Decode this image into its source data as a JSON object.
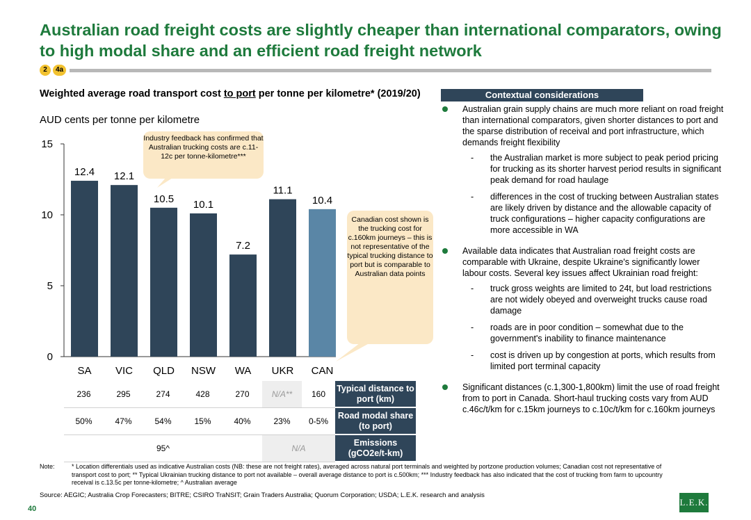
{
  "title": "Australian road freight costs are slightly cheaper than international comparators, owing to high modal share and an efficient road freight network",
  "badges": [
    "2",
    "4a"
  ],
  "chart_data": {
    "type": "bar",
    "title_pre": "Weighted average road transport cost ",
    "title_underlined": "to port",
    "title_post": " per tonne per kilometre* (2019/20)",
    "ylabel": "AUD cents per tonne per kilometre",
    "categories": [
      "SA",
      "VIC",
      "QLD",
      "NSW",
      "WA",
      "UKR",
      "CAN"
    ],
    "values": [
      12.4,
      12.1,
      10.5,
      10.1,
      7.2,
      11.1,
      10.4
    ],
    "value_labels": [
      "12.4",
      "12.1",
      "10.5",
      "10.1",
      "7.2",
      "11.1",
      "10.4"
    ],
    "ylim": [
      0,
      15
    ],
    "yticks": [
      "0",
      "5",
      "10",
      "15"
    ],
    "ytick_values": [
      0,
      5,
      10,
      15
    ],
    "bar_colors": [
      "#2f4559",
      "#2f4559",
      "#2f4559",
      "#2f4559",
      "#2f4559",
      "#2f4559",
      "#5a86a6"
    ],
    "callout_1": "Industry feedback has confirmed that Australian trucking costs are c.11-12c per tonne-kilometre***",
    "callout_2": "Canadian cost shown is the trucking cost for c.160km journeys – this is not representative of the typical trucking distance to port but is comparable to Australian data points"
  },
  "metrics": {
    "distance": {
      "label": "Typical distance to port (km)",
      "values": [
        "236",
        "295",
        "274",
        "428",
        "270",
        "N/A**",
        "160"
      ]
    },
    "modal": {
      "label": "Road modal share (to port)",
      "values": [
        "50%",
        "47%",
        "54%",
        "15%",
        "40%",
        "23%",
        "0-5%"
      ]
    },
    "emissions": {
      "label": "Emissions (gCO2e/t-km)",
      "australia": "95^",
      "other": "N/A"
    }
  },
  "context": {
    "heading": "Contextual considerations",
    "b1": "Australian grain supply chains are much more reliant on road freight than international comparators, given shorter distances to port and the sparse distribution of receival and port infrastructure, which demands freight flexibility",
    "b1s1": "the Australian market is more subject to peak period pricing for trucking as its shorter harvest period results in significant peak demand for road haulage",
    "b1s2": "differences in the cost of trucking between Australian states are likely driven by distance and the allowable capacity of truck configurations – higher capacity configurations are more accessible in WA",
    "b2": "Available data indicates that Australian road freight costs are comparable with Ukraine, despite Ukraine's significantly lower labour costs. Several key issues affect Ukrainian road freight:",
    "b2s1": "truck gross weights are limited to 24t, but load restrictions are not widely obeyed and overweight trucks cause road damage",
    "b2s2": "roads are in poor condition – somewhat due to the government's inability to finance maintenance",
    "b2s3": "cost is driven up by congestion at ports, which results from limited port terminal capacity",
    "b3": "Significant distances (c.1,300-1,800km) limit the use of road freight from to port in Canada. Short-haul trucking costs vary from AUD c.46c/t/km for c.15km journeys to c.10c/t/km for c.160km journeys"
  },
  "note_label": "Note:",
  "note": "* Location differentials used as indicative Australian costs (NB: these are not freight rates), averaged across natural port terminals and weighted by portzone production volumes; Canadian cost not representative of transport cost to port; ** Typical Ukrainian trucking distance to port not available – overall average distance to port is c.500km; *** Industry feedback has also indicated that the cost of trucking from farm to upcountry receival is c.13.5c per tonne-kilometre; ^ Australian average",
  "source": "Source: AEGIC; Australia Crop Forecasters; BITRE; CSIRO TraNSIT; Grain Traders Australia; Quorum Corporation; USDA; L.E.K. research and analysis",
  "page_number": "40",
  "logo": "L.E.K."
}
